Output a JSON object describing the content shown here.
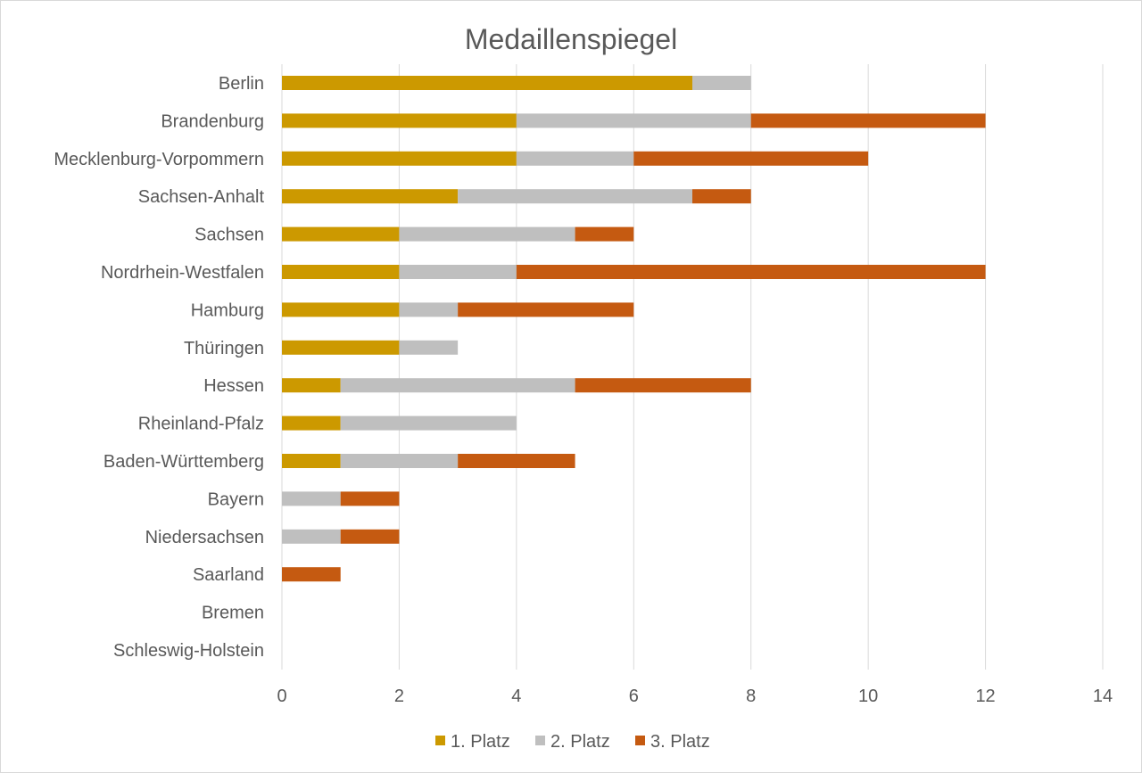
{
  "chart_data": {
    "type": "bar",
    "orientation": "horizontal",
    "stacked": true,
    "title": "Medaillenspiegel",
    "xlabel": "",
    "ylabel": "",
    "xlim": [
      0,
      14
    ],
    "x_ticks": [
      0,
      2,
      4,
      6,
      8,
      10,
      12,
      14
    ],
    "grid": true,
    "legend_position": "bottom",
    "categories": [
      "Berlin",
      "Brandenburg",
      "Mecklenburg-Vorpommern",
      "Sachsen-Anhalt",
      "Sachsen",
      "Nordrhein-Westfalen",
      "Hamburg",
      "Thüringen",
      "Hessen",
      "Rheinland-Pfalz",
      "Baden-Württemberg",
      "Bayern",
      "Niedersachsen",
      "Saarland",
      "Bremen",
      "Schleswig-Holstein"
    ],
    "series": [
      {
        "name": "1. Platz",
        "color": "#cc9900",
        "values": [
          7,
          4,
          4,
          3,
          2,
          2,
          2,
          2,
          1,
          1,
          1,
          0,
          0,
          0,
          0,
          0
        ]
      },
      {
        "name": "2. Platz",
        "color": "#bfbfbf",
        "values": [
          1,
          4,
          2,
          4,
          3,
          2,
          1,
          1,
          4,
          3,
          2,
          1,
          1,
          0,
          0,
          0
        ]
      },
      {
        "name": "3. Platz",
        "color": "#c55a11",
        "values": [
          0,
          4,
          4,
          1,
          1,
          8,
          3,
          0,
          3,
          0,
          2,
          1,
          1,
          1,
          0,
          0
        ]
      }
    ]
  }
}
